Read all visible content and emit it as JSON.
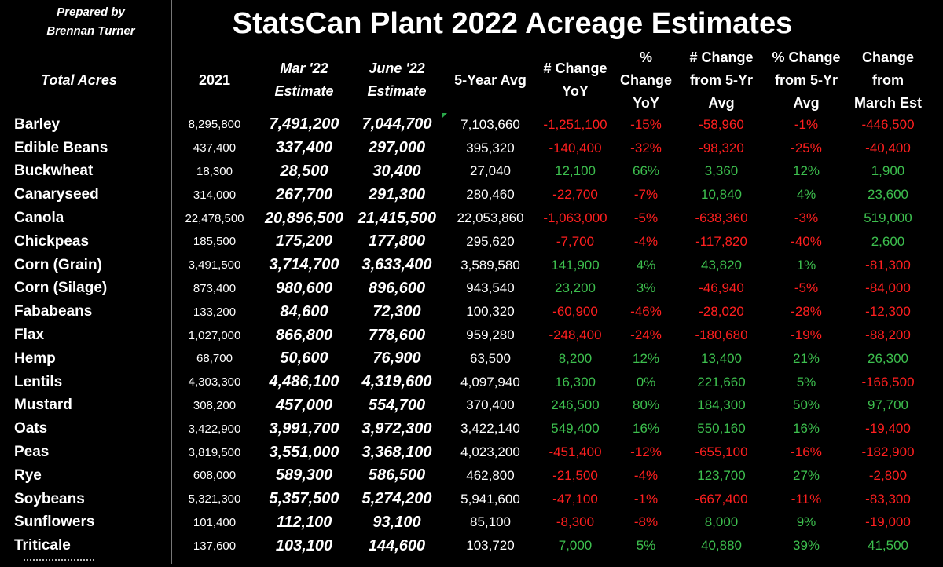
{
  "prepared_by": "Prepared by\nBrennan Turner",
  "title": "StatsCan Plant 2022 Acreage Estimates",
  "headers": {
    "name": "Total Acres",
    "y2021": "2021",
    "mar": "Mar '22\nEstimate",
    "jun": "June '22\nEstimate",
    "avg": "5-Year Avg",
    "chg": "# Change\nYoY",
    "pct": "%\nChange\nYoY",
    "chg5": "# Change\nfrom 5-Yr\nAvg",
    "pct5": "% Change\nfrom 5-Yr\nAvg",
    "chm": "Change\nfrom\nMarch Est"
  },
  "colors": {
    "positive": "#3dbf4e",
    "negative": "#ff1f1f",
    "background": "#000000"
  },
  "rows": [
    {
      "name": "Barley",
      "y2021": "8,295,800",
      "mar": "7,491,200",
      "jun": "7,044,700",
      "avg": "7,103,660",
      "chg": "-1,251,100",
      "pct": "-15%",
      "chg5": "-58,960",
      "pct5": "-1%",
      "chm": "-446,500"
    },
    {
      "name": "Edible Beans",
      "y2021": "437,400",
      "mar": "337,400",
      "jun": "297,000",
      "avg": "395,320",
      "chg": "-140,400",
      "pct": "-32%",
      "chg5": "-98,320",
      "pct5": "-25%",
      "chm": "-40,400"
    },
    {
      "name": "Buckwheat",
      "y2021": "18,300",
      "mar": "28,500",
      "jun": "30,400",
      "avg": "27,040",
      "chg": "12,100",
      "pct": "66%",
      "chg5": "3,360",
      "pct5": "12%",
      "chm": "1,900"
    },
    {
      "name": "Canaryseed",
      "y2021": "314,000",
      "mar": "267,700",
      "jun": "291,300",
      "avg": "280,460",
      "chg": "-22,700",
      "pct": "-7%",
      "chg5": "10,840",
      "pct5": "4%",
      "chm": "23,600"
    },
    {
      "name": "Canola",
      "y2021": "22,478,500",
      "mar": "20,896,500",
      "jun": "21,415,500",
      "avg": "22,053,860",
      "chg": "-1,063,000",
      "pct": "-5%",
      "chg5": "-638,360",
      "pct5": "-3%",
      "chm": "519,000"
    },
    {
      "name": "Chickpeas",
      "y2021": "185,500",
      "mar": "175,200",
      "jun": "177,800",
      "avg": "295,620",
      "chg": "-7,700",
      "pct": "-4%",
      "chg5": "-117,820",
      "pct5": "-40%",
      "chm": "2,600"
    },
    {
      "name": "Corn (Grain)",
      "y2021": "3,491,500",
      "mar": "3,714,700",
      "jun": "3,633,400",
      "avg": "3,589,580",
      "chg": "141,900",
      "pct": "4%",
      "chg5": "43,820",
      "pct5": "1%",
      "chm": "-81,300"
    },
    {
      "name": "Corn (Silage)",
      "y2021": "873,400",
      "mar": "980,600",
      "jun": "896,600",
      "avg": "943,540",
      "chg": "23,200",
      "pct": "3%",
      "chg5": "-46,940",
      "pct5": "-5%",
      "chm": "-84,000"
    },
    {
      "name": "Fababeans",
      "y2021": "133,200",
      "mar": "84,600",
      "jun": "72,300",
      "avg": "100,320",
      "chg": "-60,900",
      "pct": "-46%",
      "chg5": "-28,020",
      "pct5": "-28%",
      "chm": "-12,300"
    },
    {
      "name": "Flax",
      "y2021": "1,027,000",
      "mar": "866,800",
      "jun": "778,600",
      "avg": "959,280",
      "chg": "-248,400",
      "pct": "-24%",
      "chg5": "-180,680",
      "pct5": "-19%",
      "chm": "-88,200"
    },
    {
      "name": "Hemp",
      "y2021": "68,700",
      "mar": "50,600",
      "jun": "76,900",
      "avg": "63,500",
      "chg": "8,200",
      "pct": "12%",
      "chg5": "13,400",
      "pct5": "21%",
      "chm": "26,300"
    },
    {
      "name": "Lentils",
      "y2021": "4,303,300",
      "mar": "4,486,100",
      "jun": "4,319,600",
      "avg": "4,097,940",
      "chg": "16,300",
      "pct": "0%",
      "chg5": "221,660",
      "pct5": "5%",
      "chm": "-166,500"
    },
    {
      "name": "Mustard",
      "y2021": "308,200",
      "mar": "457,000",
      "jun": "554,700",
      "avg": "370,400",
      "chg": "246,500",
      "pct": "80%",
      "chg5": "184,300",
      "pct5": "50%",
      "chm": "97,700"
    },
    {
      "name": "Oats",
      "y2021": "3,422,900",
      "mar": "3,991,700",
      "jun": "3,972,300",
      "avg": "3,422,140",
      "chg": "549,400",
      "pct": "16%",
      "chg5": "550,160",
      "pct5": "16%",
      "chm": "-19,400"
    },
    {
      "name": "Peas",
      "y2021": "3,819,500",
      "mar": "3,551,000",
      "jun": "3,368,100",
      "avg": "4,023,200",
      "chg": "-451,400",
      "pct": "-12%",
      "chg5": "-655,100",
      "pct5": "-16%",
      "chm": "-182,900"
    },
    {
      "name": "Rye",
      "y2021": "608,000",
      "mar": "589,300",
      "jun": "586,500",
      "avg": "462,800",
      "chg": "-21,500",
      "pct": "-4%",
      "chg5": "123,700",
      "pct5": "27%",
      "chm": "-2,800"
    },
    {
      "name": "Soybeans",
      "y2021": "5,321,300",
      "mar": "5,357,500",
      "jun": "5,274,200",
      "avg": "5,941,600",
      "chg": "-47,100",
      "pct": "-1%",
      "chg5": "-667,400",
      "pct5": "-11%",
      "chm": "-83,300"
    },
    {
      "name": "Sunflowers",
      "y2021": "101,400",
      "mar": "112,100",
      "jun": "93,100",
      "avg": "85,100",
      "chg": "-8,300",
      "pct": "-8%",
      "chg5": "8,000",
      "pct5": "9%",
      "chm": "-19,000"
    },
    {
      "name": "Triticale",
      "y2021": "137,600",
      "mar": "103,100",
      "jun": "144,600",
      "avg": "103,720",
      "chg": "7,000",
      "pct": "5%",
      "chg5": "40,880",
      "pct5": "39%",
      "chm": "41,500"
    }
  ]
}
